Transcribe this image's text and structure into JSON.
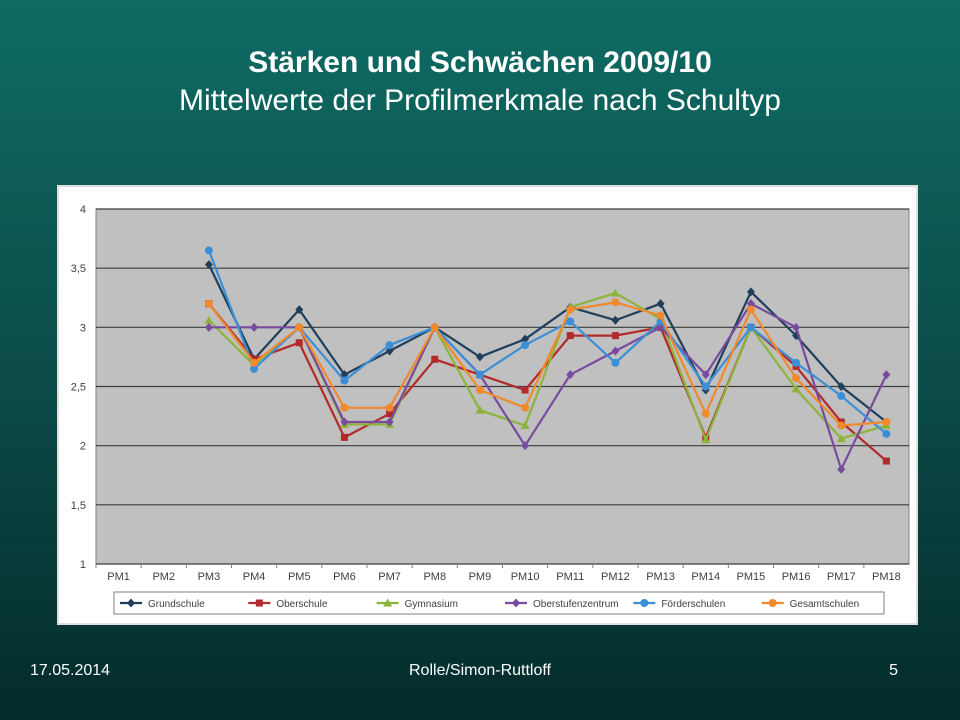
{
  "slide": {
    "title": "Stärken und Schwächen 2009/10",
    "subtitle": "Mittelwerte der Profilmerkmale nach Schultyp",
    "footer_date": "17.05.2014",
    "footer_authors": "Rolle/Simon-Ruttloff",
    "footer_page": "5"
  },
  "chart_data": {
    "type": "line",
    "categories": [
      "PM1",
      "PM2",
      "PM3",
      "PM4",
      "PM5",
      "PM6",
      "PM7",
      "PM8",
      "PM9",
      "PM10",
      "PM11",
      "PM12",
      "PM13",
      "PM14",
      "PM15",
      "PM16",
      "PM17",
      "PM18"
    ],
    "ylim": [
      1,
      4
    ],
    "yticks": [
      "1",
      "1,5",
      "2",
      "2,5",
      "3",
      "3,5",
      "4"
    ],
    "yticks_values": [
      1,
      1.5,
      2,
      2.5,
      3,
      3.5,
      4
    ],
    "grid": true,
    "legend_position": "bottom",
    "plot_background": "#c0c0c0",
    "series": [
      {
        "name": "Grundschule",
        "color": "#1f3f5b",
        "marker": "diamond",
        "values": [
          null,
          null,
          3.53,
          2.73,
          3.15,
          2.6,
          2.8,
          3.0,
          2.75,
          2.9,
          3.17,
          3.06,
          3.2,
          2.47,
          3.3,
          2.93,
          2.5,
          2.2
        ]
      },
      {
        "name": "Oberschule",
        "color": "#b22a2a",
        "marker": "square",
        "values": [
          null,
          null,
          3.2,
          2.73,
          2.87,
          2.07,
          2.27,
          2.73,
          2.6,
          2.47,
          2.93,
          2.93,
          3.0,
          2.07,
          3.0,
          2.67,
          2.2,
          1.87
        ]
      },
      {
        "name": "Gymnasium",
        "color": "#8db43a",
        "marker": "triangle",
        "values": [
          null,
          null,
          3.06,
          2.68,
          3.0,
          2.18,
          2.18,
          3.0,
          2.3,
          2.17,
          3.17,
          3.29,
          3.07,
          2.05,
          3.0,
          2.48,
          2.06,
          2.17
        ]
      },
      {
        "name": "Oberstufenzentrum",
        "color": "#7a4a9e",
        "marker": "diamond",
        "values": [
          null,
          null,
          3.0,
          3.0,
          3.0,
          2.2,
          2.2,
          3.0,
          2.6,
          2.0,
          2.6,
          2.8,
          3.0,
          2.6,
          3.2,
          3.0,
          1.8,
          2.6
        ]
      },
      {
        "name": "Förderschulen",
        "color": "#3b8fd6",
        "marker": "circle",
        "values": [
          null,
          null,
          3.65,
          2.65,
          3.0,
          2.55,
          2.85,
          3.0,
          2.6,
          2.85,
          3.05,
          2.7,
          3.05,
          2.5,
          3.0,
          2.7,
          2.42,
          2.1
        ]
      },
      {
        "name": "Gesamtschulen",
        "color": "#f08a2c",
        "marker": "circle",
        "values": [
          null,
          null,
          3.2,
          2.7,
          3.0,
          2.32,
          2.32,
          3.0,
          2.47,
          2.32,
          3.15,
          3.21,
          3.1,
          2.27,
          3.15,
          2.57,
          2.17,
          2.2
        ]
      }
    ]
  }
}
